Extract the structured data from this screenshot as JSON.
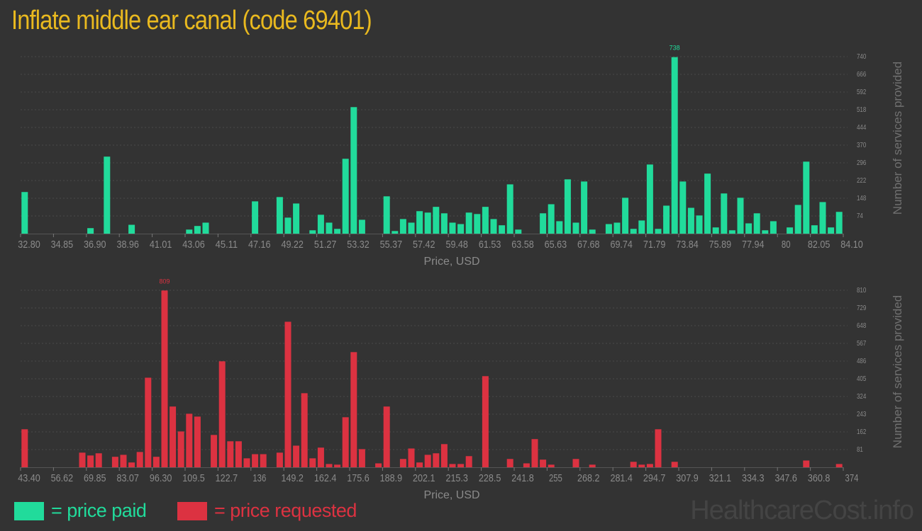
{
  "title": "Inflate middle ear canal (code 69401)",
  "colors": {
    "background": "#333333",
    "paid": "#21db9b",
    "requested": "#dc3241",
    "title": "#e9b91f",
    "axis_text": "#8a8a8a"
  },
  "legend": {
    "paid": "= price paid",
    "requested": "= price requested"
  },
  "watermark": "HealthcareCost.info",
  "chart_data": [
    {
      "type": "bar",
      "series_key": "paid",
      "xlabel": "Price, USD",
      "ylabel": "Number of services provided",
      "x_ticks": [
        "32.80",
        "34.85",
        "36.90",
        "38.96",
        "41.01",
        "43.06",
        "45.11",
        "47.16",
        "49.22",
        "51.27",
        "53.32",
        "55.37",
        "57.42",
        "59.48",
        "61.53",
        "63.58",
        "65.63",
        "67.68",
        "69.74",
        "71.79",
        "73.84",
        "75.89",
        "77.94",
        "80",
        "82.05",
        "84.10"
      ],
      "xlim": [
        32.8,
        84.1
      ],
      "y_ticks": [
        "74",
        "148",
        "222",
        "296",
        "370",
        "444",
        "518",
        "592",
        "666",
        "740"
      ],
      "ylim": [
        0,
        740
      ],
      "grid": true,
      "peak_label": "738",
      "values": [
        174,
        0,
        0,
        0,
        0,
        0,
        0,
        0,
        23,
        0,
        322,
        0,
        0,
        37,
        0,
        0,
        0,
        0,
        0,
        0,
        17,
        32,
        46,
        0,
        0,
        0,
        0,
        0,
        135,
        0,
        0,
        153,
        67,
        126,
        0,
        14,
        79,
        46,
        20,
        313,
        529,
        58,
        0,
        0,
        156,
        11,
        61,
        46,
        94,
        88,
        112,
        85,
        46,
        40,
        88,
        82,
        112,
        61,
        35,
        206,
        17,
        0,
        0,
        85,
        123,
        52,
        227,
        46,
        218,
        17,
        0,
        40,
        46,
        150,
        20,
        55,
        289,
        20,
        117,
        738,
        218,
        108,
        76,
        251,
        26,
        168,
        14,
        150,
        43,
        85,
        14,
        52,
        0,
        26,
        120,
        301,
        35,
        132,
        26,
        91
      ]
    },
    {
      "type": "bar",
      "series_key": "requested",
      "xlabel": "Price, USD",
      "ylabel": "Number of services provided",
      "x_ticks": [
        "43.40",
        "56.62",
        "69.85",
        "83.07",
        "96.30",
        "109.5",
        "122.7",
        "136",
        "149.2",
        "162.4",
        "175.6",
        "188.9",
        "202.1",
        "215.3",
        "228.5",
        "241.8",
        "255",
        "268.2",
        "281.4",
        "294.7",
        "307.9",
        "321.1",
        "334.3",
        "347.6",
        "360.8",
        "374"
      ],
      "xlim": [
        43.4,
        374
      ],
      "y_ticks": [
        "81",
        "162",
        "243",
        "324",
        "405",
        "486",
        "567",
        "648",
        "729",
        "810"
      ],
      "ylim": [
        0,
        810
      ],
      "grid": true,
      "peak_label": "809",
      "values": [
        174,
        0,
        0,
        0,
        0,
        0,
        0,
        67,
        54,
        64,
        0,
        48,
        57,
        22,
        70,
        410,
        48,
        809,
        278,
        164,
        245,
        232,
        0,
        148,
        485,
        119,
        119,
        41,
        60,
        60,
        0,
        67,
        666,
        99,
        339,
        41,
        90,
        15,
        12,
        229,
        527,
        83,
        0,
        18,
        278,
        0,
        38,
        86,
        22,
        57,
        64,
        106,
        15,
        15,
        51,
        0,
        417,
        0,
        0,
        38,
        0,
        18,
        129,
        35,
        12,
        0,
        0,
        38,
        0,
        12,
        0,
        0,
        0,
        0,
        25,
        12,
        15,
        174,
        0,
        25,
        0,
        0,
        0,
        0,
        0,
        0,
        0,
        0,
        0,
        0,
        0,
        0,
        0,
        0,
        0,
        31,
        0,
        0,
        0,
        15
      ]
    }
  ]
}
